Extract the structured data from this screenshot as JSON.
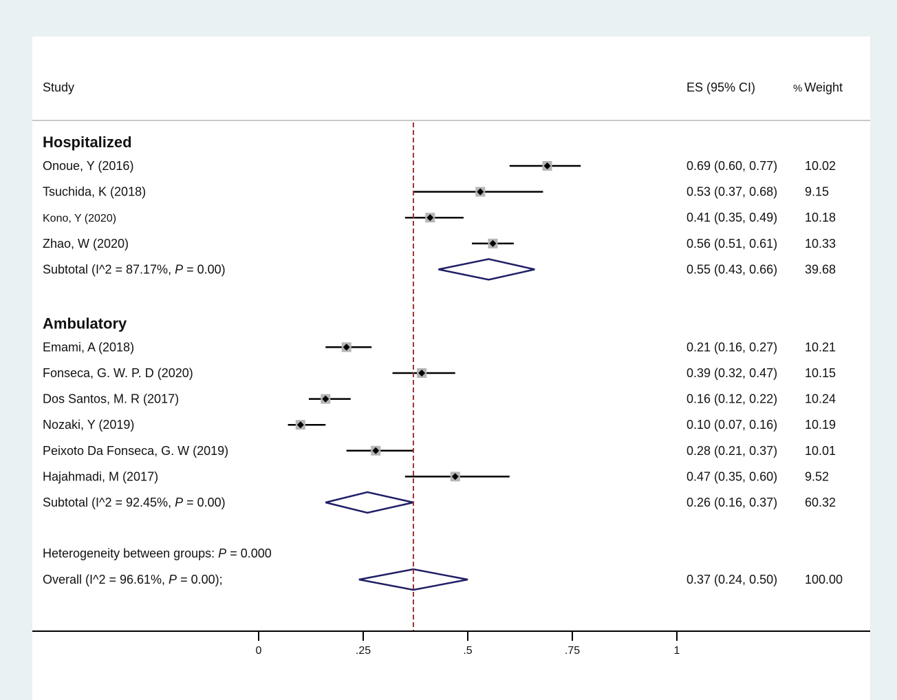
{
  "header": {
    "study": "Study",
    "es": "ES (95% CI)",
    "weight_pct": "%",
    "weight_word": "Weight"
  },
  "heterogeneity": {
    "prefix": "Heterogeneity between groups: ",
    "p": "P",
    "value": " = 0.000"
  },
  "chart_data": {
    "type": "forest",
    "x_ticks": [
      {
        "value": 0,
        "label": "0"
      },
      {
        "value": 0.25,
        "label": ".25"
      },
      {
        "value": 0.5,
        "label": ".5"
      },
      {
        "value": 0.75,
        "label": ".75"
      },
      {
        "value": 1,
        "label": "1"
      }
    ],
    "reference_line": 0.37,
    "groups": [
      {
        "name": "Hospitalized",
        "studies": [
          {
            "label": "Onoue, Y (2016)",
            "es": 0.69,
            "lo": 0.6,
            "hi": 0.77,
            "ci_text": "0.69 (0.60, 0.77)",
            "weight": "10.02",
            "small_font": false
          },
          {
            "label": "Tsuchida, K (2018)",
            "es": 0.53,
            "lo": 0.37,
            "hi": 0.68,
            "ci_text": "0.53 (0.37, 0.68)",
            "weight": "9.15",
            "small_font": false
          },
          {
            "label": "Kono, Y (2020)",
            "es": 0.41,
            "lo": 0.35,
            "hi": 0.49,
            "ci_text": "0.41 (0.35, 0.49)",
            "weight": "10.18",
            "small_font": true
          },
          {
            "label": "Zhao, W (2020)",
            "es": 0.56,
            "lo": 0.51,
            "hi": 0.61,
            "ci_text": "0.56 (0.51, 0.61)",
            "weight": "10.33",
            "small_font": false
          }
        ],
        "subtotal": {
          "prefix": "Subtotal  (I^2 = 87.17%, ",
          "p": "P",
          "suffix": " = 0.00)",
          "es": 0.55,
          "lo": 0.43,
          "hi": 0.66,
          "ci_text": "0.55 (0.43, 0.66)",
          "weight": "39.68"
        }
      },
      {
        "name": "Ambulatory",
        "studies": [
          {
            "label": "Emami, A (2018)",
            "es": 0.21,
            "lo": 0.16,
            "hi": 0.27,
            "ci_text": "0.21 (0.16, 0.27)",
            "weight": "10.21",
            "small_font": false
          },
          {
            "label": "Fonseca, G. W. P. D (2020)",
            "es": 0.39,
            "lo": 0.32,
            "hi": 0.47,
            "ci_text": "0.39 (0.32, 0.47)",
            "weight": "10.15",
            "small_font": false
          },
          {
            "label": "Dos Santos, M. R (2017)",
            "es": 0.16,
            "lo": 0.12,
            "hi": 0.22,
            "ci_text": "0.16 (0.12, 0.22)",
            "weight": "10.24",
            "small_font": false
          },
          {
            "label": "Nozaki, Y (2019)",
            "es": 0.1,
            "lo": 0.07,
            "hi": 0.16,
            "ci_text": "0.10 (0.07, 0.16)",
            "weight": "10.19",
            "small_font": false
          },
          {
            "label": "Peixoto Da Fonseca, G. W (2019)",
            "es": 0.28,
            "lo": 0.21,
            "hi": 0.37,
            "ci_text": "0.28 (0.21, 0.37)",
            "weight": "10.01",
            "small_font": false
          },
          {
            "label": "Hajahmadi, M (2017)",
            "es": 0.47,
            "lo": 0.35,
            "hi": 0.6,
            "ci_text": "0.47 (0.35, 0.60)",
            "weight": "9.52",
            "small_font": false
          }
        ],
        "subtotal": {
          "prefix": "Subtotal  (I^2 = 92.45%, ",
          "p": "P",
          "suffix": " = 0.00)",
          "es": 0.26,
          "lo": 0.16,
          "hi": 0.37,
          "ci_text": "0.26 (0.16, 0.37)",
          "weight": "60.32"
        }
      }
    ],
    "overall": {
      "prefix": "Overall  (I^2 = 96.61%, ",
      "p": "P",
      "suffix": " = 0.00);",
      "es": 0.37,
      "lo": 0.24,
      "hi": 0.5,
      "ci_text": "0.37 (0.24, 0.50)",
      "weight": "100.00"
    },
    "colors": {
      "ci_line": "#000000",
      "marker_box": "#b5b5b5",
      "diamond": "#1f1f66",
      "reference": "#a03030",
      "background": "#e9f1f2",
      "panel": "#ffffff"
    }
  }
}
